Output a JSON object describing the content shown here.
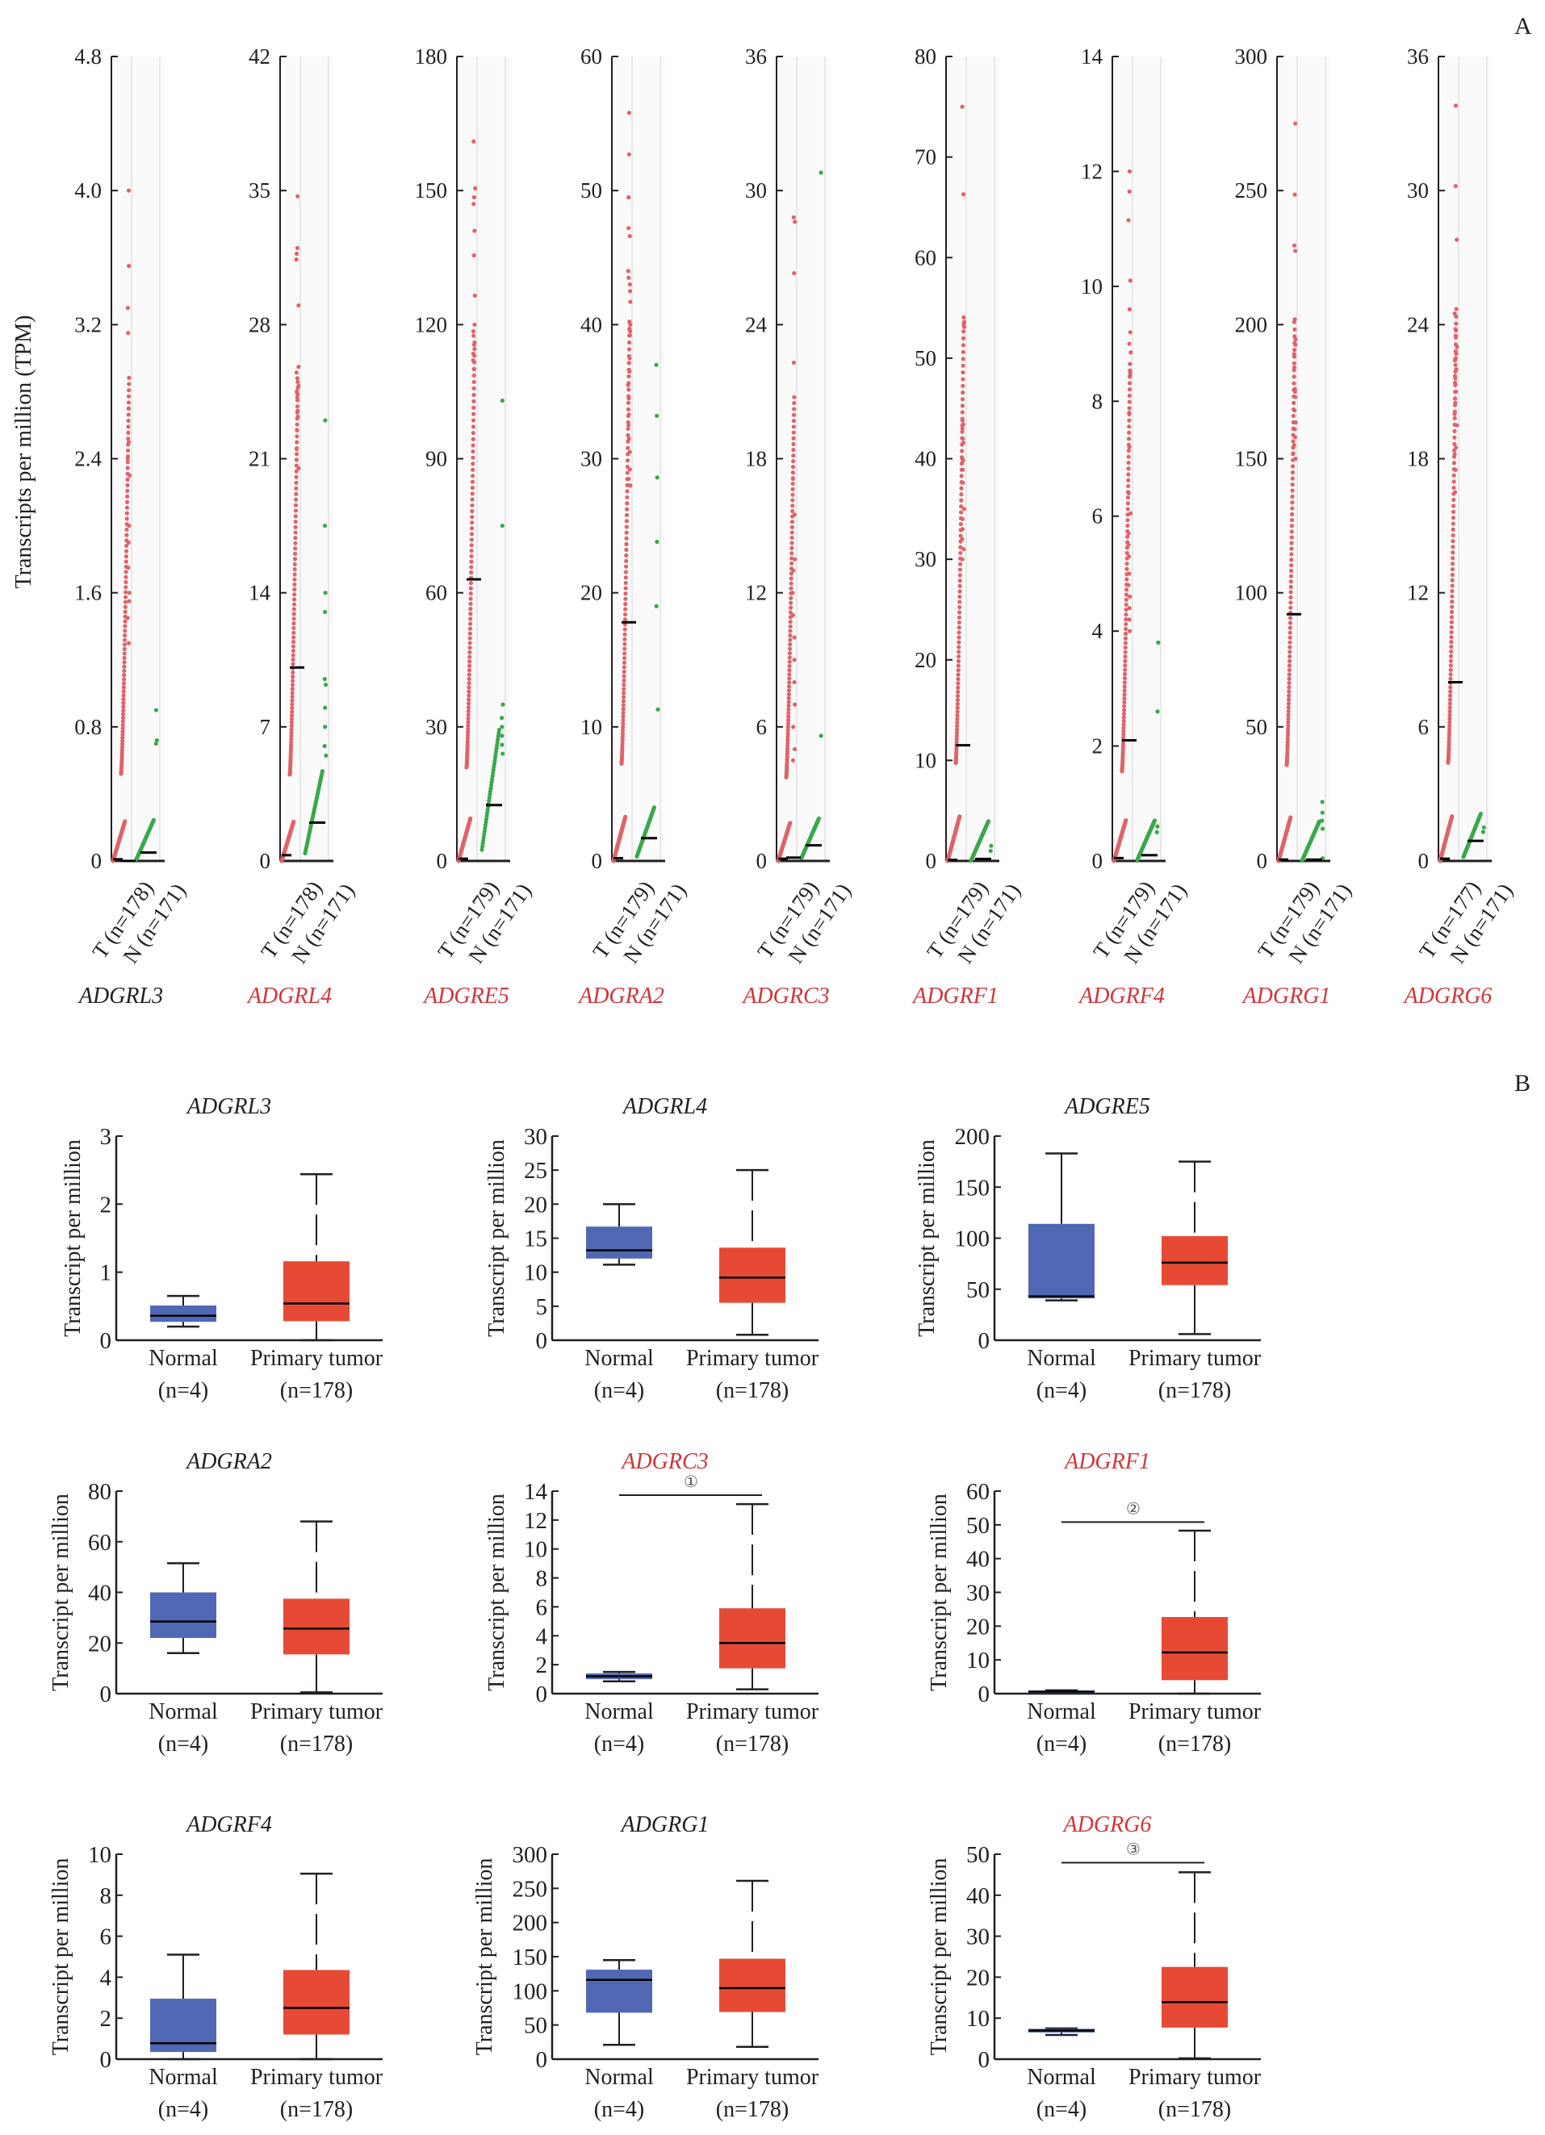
{
  "panels": {
    "a_letter": "A",
    "b_letter": "B"
  },
  "colors": {
    "tumor_dot": "#e0636a",
    "normal_dot": "#3aa84a",
    "normal_box": "#5068b4",
    "tumor_box": "#e64a35",
    "highlight_label": "#d0363b",
    "default_label": "#231f20",
    "median": "#000000",
    "axis": "#231f20"
  },
  "chart_data": [
    {
      "panel": "A",
      "type": "scatter",
      "title": "",
      "ylabel": "Transcripts per million (TPM)",
      "group_labels": [
        "T",
        "N"
      ],
      "note": "Jitter strip plots of per-sample expression (tumor red, normal green) with black median bars",
      "genes": [
        {
          "gene": "ADGRL3",
          "highlight": false,
          "ylim": [
            0,
            4.8
          ],
          "yticks": [
            0,
            0.8,
            1.6,
            2.4,
            3.2,
            4.0,
            4.8
          ],
          "tick_labels": [
            "0",
            "0.8",
            "1.6",
            "2.4",
            "3.2",
            "4.0",
            "4.8"
          ],
          "n_tumor": 178,
          "n_normal": 171,
          "tumor_label": "T (n=178)",
          "normal_label": "N (n=171)",
          "tumor_median": 0.01,
          "normal_median": 0.05,
          "tumor_max": 4.0,
          "normal_max": 0.9,
          "tumor_outliers": [
            4.0,
            3.55,
            3.3,
            3.15,
            2.7,
            2.5,
            2.4,
            2.3,
            2.0,
            1.9,
            1.75,
            1.6,
            1.55,
            1.45,
            1.3
          ],
          "normal_outliers": [
            0.9,
            0.72,
            0.7
          ]
        },
        {
          "gene": "ADGRL4",
          "highlight": true,
          "ylim": [
            0,
            42
          ],
          "yticks": [
            0,
            7,
            14,
            21,
            28,
            35,
            42
          ],
          "tick_labels": [
            "0",
            "7",
            "14",
            "21",
            "28",
            "35",
            "42"
          ],
          "n_tumor": 178,
          "n_normal": 171,
          "tumor_label": "T (n=178)",
          "normal_label": "N (n=171)",
          "tumor_median": 0.3,
          "normal_median": 2.0,
          "tumor_max": 34.7,
          "normal_max": 23.0,
          "tumor_outliers": [
            34.7,
            32.0,
            31.7,
            31.4,
            29.0,
            25.8,
            25.5,
            25.2,
            24.8,
            24.5,
            24.2,
            23.5,
            23.2,
            22.5,
            21.5,
            20.5
          ],
          "normal_outliers": [
            23.0,
            17.5,
            14.0,
            13.0,
            9.5,
            9.2,
            8.0,
            7.0,
            6.0,
            5.5
          ]
        },
        {
          "gene": "ADGRE5",
          "highlight": true,
          "ylim": [
            0,
            180
          ],
          "yticks": [
            0,
            30,
            60,
            90,
            120,
            150,
            180
          ],
          "tick_labels": [
            "0",
            "30",
            "60",
            "90",
            "120",
            "150",
            "180"
          ],
          "n_tumor": 179,
          "n_normal": 171,
          "tumor_median": 0.5,
          "normal_median": 12.5,
          "tumor_label": "T (n=179)",
          "normal_label": "N (n=171)",
          "tumor_max": 161.0,
          "normal_max": 103.0,
          "tumor_outliers": [
            161.0,
            150.5,
            148.5,
            147.0,
            141.0,
            135.5,
            126.5,
            120.0,
            118.5,
            117.5,
            115.5,
            113.5,
            112.0,
            110.0
          ],
          "normal_outliers": [
            103.0,
            75.0,
            35.0,
            32.0,
            30.0,
            28.0,
            26.0,
            24.0
          ]
        },
        {
          "gene": "ADGRA2",
          "highlight": true,
          "ylim": [
            0,
            60
          ],
          "yticks": [
            0,
            10,
            20,
            30,
            40,
            50,
            60
          ],
          "tick_labels": [
            "0",
            "10",
            "20",
            "30",
            "40",
            "50",
            "60"
          ],
          "n_tumor": 179,
          "n_normal": 171,
          "tumor_label": "T (n=179)",
          "normal_label": "N (n=171)",
          "tumor_median": 0.2,
          "normal_median": 1.7,
          "tumor_max": 55.8,
          "normal_max": 37.0,
          "tumor_outliers": [
            55.8,
            52.7,
            49.5,
            47.2,
            46.6,
            44.0,
            43.5,
            43.0,
            42.5,
            41.7,
            40.0,
            39.5,
            39.2,
            37.5,
            36.5,
            35.5,
            34.5,
            33.3,
            32.5,
            31.5,
            30.5,
            29.2,
            28.5,
            28.0
          ],
          "normal_outliers": [
            37.0,
            33.2,
            28.6,
            23.8,
            19.0,
            11.3
          ]
        },
        {
          "gene": "ADGRC3",
          "highlight": true,
          "ylim": [
            0,
            36
          ],
          "yticks": [
            0,
            6,
            12,
            18,
            24,
            30,
            36
          ],
          "tick_labels": [
            "0",
            "6",
            "12",
            "18",
            "24",
            "30",
            "36"
          ],
          "n_tumor": 179,
          "n_normal": 171,
          "tumor_label": "T (n=179)",
          "normal_label": "N (n=171)",
          "tumor_median": 0.1,
          "normal_median": 0.7,
          "tumor_max": 28.8,
          "normal_max": 30.8,
          "tumor_outliers": [
            28.8,
            28.6,
            26.3,
            22.3,
            17.1,
            15.5,
            13.5,
            13.0,
            12.0,
            11.0,
            10.0,
            9.0,
            8.0,
            7.0,
            6.0,
            5.0,
            4.5
          ],
          "normal_outliers": [
            30.8,
            5.6
          ]
        },
        {
          "gene": "ADGRF1",
          "highlight": true,
          "ylim": [
            0,
            80
          ],
          "yticks": [
            0,
            10,
            20,
            30,
            40,
            50,
            60,
            70,
            80
          ],
          "tick_labels": [
            "0",
            "10",
            "20",
            "30",
            "40",
            "50",
            "60",
            "70",
            "80"
          ],
          "n_tumor": 179,
          "n_normal": 171,
          "tumor_label": "T (n=179)",
          "normal_label": "N (n=171)",
          "tumor_median": 0.1,
          "normal_median": 0.2,
          "tumor_max": 75.0,
          "normal_max": 1.5,
          "tumor_outliers": [
            75.0,
            66.3,
            53.6,
            53.1,
            43.8,
            43.4,
            43.0,
            42.0,
            41.6,
            40.0,
            39.8,
            38.9,
            37.6,
            35.0,
            34.0,
            33.0,
            32.0,
            31.0,
            30.0
          ],
          "normal_outliers": [
            1.5,
            1.0
          ]
        },
        {
          "gene": "ADGRF4",
          "highlight": true,
          "ylim": [
            0,
            14
          ],
          "yticks": [
            0,
            2,
            4,
            6,
            8,
            10,
            12,
            14
          ],
          "tick_labels": [
            "0",
            "2",
            "4",
            "6",
            "8",
            "10",
            "12",
            "14"
          ],
          "n_tumor": 179,
          "n_normal": 171,
          "tumor_label": "T (n=179)",
          "normal_label": "N (n=171)",
          "tumor_median": 0.05,
          "normal_median": 0.1,
          "tumor_max": 12.0,
          "normal_max": 3.8,
          "tumor_outliers": [
            12.0,
            11.65,
            11.15,
            10.1,
            9.6,
            9.2,
            9.0,
            8.85,
            8.5,
            8.45,
            7.8,
            7.2,
            6.4,
            6.05,
            5.7,
            5.5,
            5.3,
            5.0,
            4.8,
            4.6,
            4.4,
            4.2,
            4.0
          ],
          "normal_outliers": [
            3.8,
            2.6,
            0.6,
            0.5
          ]
        },
        {
          "gene": "ADGRG1",
          "highlight": true,
          "ylim": [
            0,
            300
          ],
          "yticks": [
            0,
            50,
            100,
            150,
            200,
            250,
            300
          ],
          "tick_labels": [
            "0",
            "50",
            "100",
            "150",
            "200",
            "250",
            "300"
          ],
          "n_tumor": 179,
          "n_normal": 171,
          "tumor_label": "T (n=179)",
          "normal_label": "N (n=171)",
          "tumor_median": 0.5,
          "normal_median": 0.5,
          "tumor_max": 275.0,
          "normal_max": 22.0,
          "tumor_outliers": [
            275.0,
            248.5,
            229.5,
            227.5,
            202.0,
            201.0,
            194.5,
            192.5,
            189.0,
            184.0,
            176.0,
            175.0,
            173.0,
            168.0,
            163.5,
            161.0,
            158.0,
            155.0,
            152.0,
            150.0
          ],
          "normal_outliers": [
            22.0,
            18.0,
            15.0,
            12.0,
            1.0
          ]
        },
        {
          "gene": "ADGRG6",
          "highlight": true,
          "ylim": [
            0,
            36
          ],
          "yticks": [
            0,
            6,
            12,
            18,
            24,
            30,
            36
          ],
          "tick_labels": [
            "0",
            "6",
            "12",
            "18",
            "24",
            "30",
            "36"
          ],
          "n_tumor": 177,
          "n_normal": 171,
          "tumor_label": "T (n=177)",
          "normal_label": "N (n=171)",
          "tumor_median": 0.1,
          "normal_median": 0.9,
          "tumor_max": 33.8,
          "normal_max": 1.5,
          "tumor_outliers": [
            33.8,
            30.2,
            27.8,
            24.7,
            24.5,
            23.8,
            23.5,
            23.0,
            22.7,
            22.4,
            22.0,
            21.7,
            21.4,
            21.0,
            20.5,
            20.0,
            19.5,
            18.5,
            18.2,
            17.5,
            16.5
          ],
          "normal_outliers": [
            1.5,
            1.3
          ]
        }
      ],
      "inner_medians": [
        {
          "gene": "ADGRL3",
          "tumor_upper_median": 0.0,
          "normal_median": 0.05
        },
        {
          "gene": "ADGRL4",
          "tumor_upper_median": 10.1,
          "normal_median": 2.0
        },
        {
          "gene": "ADGRE5",
          "tumor_upper_median": 63.0,
          "normal_median": 12.5
        },
        {
          "gene": "ADGRA2",
          "tumor_upper_median": 17.8,
          "normal_median": 1.7
        },
        {
          "gene": "ADGRC3",
          "tumor_upper_median": 0.15,
          "normal_median": 0.7
        },
        {
          "gene": "ADGRF1",
          "tumor_upper_median": 11.5,
          "normal_median": 0.2
        },
        {
          "gene": "ADGRF4",
          "tumor_upper_median": 2.1,
          "normal_median": 0.1
        },
        {
          "gene": "ADGRG1",
          "tumor_upper_median": 92.0,
          "normal_median": 0.5
        },
        {
          "gene": "ADGRG6",
          "tumor_upper_median": 8.0,
          "normal_median": 0.9
        }
      ]
    },
    {
      "panel": "B",
      "type": "box",
      "ylabel": "Transcript per million",
      "categories": [
        "Normal",
        "Primary tumor"
      ],
      "category_counts": [
        "(n=4)",
        "(n=178)"
      ],
      "plots": [
        {
          "gene": "ADGRL3",
          "highlight": false,
          "ylim": [
            0,
            3
          ],
          "yticks": [
            0,
            1,
            2,
            3
          ],
          "tick_labels": [
            "0",
            "1",
            "2",
            "3"
          ],
          "significance": null,
          "normal": {
            "min": 0.2,
            "q1": 0.27,
            "median": 0.36,
            "q3": 0.51,
            "max": 0.65
          },
          "tumor": {
            "min": 0.0,
            "q1": 0.28,
            "median": 0.54,
            "q3": 1.16,
            "max": 2.44
          }
        },
        {
          "gene": "ADGRL4",
          "highlight": false,
          "ylim": [
            0,
            30
          ],
          "yticks": [
            0,
            5,
            10,
            15,
            20,
            25,
            30
          ],
          "tick_labels": [
            "0",
            "5",
            "10",
            "15",
            "20",
            "25",
            "30"
          ],
          "significance": null,
          "normal": {
            "min": 11.1,
            "q1": 12.0,
            "median": 13.2,
            "q3": 16.7,
            "max": 20.0
          },
          "tumor": {
            "min": 0.8,
            "q1": 5.5,
            "median": 9.2,
            "q3": 13.6,
            "max": 25.0
          }
        },
        {
          "gene": "ADGRE5",
          "highlight": false,
          "ylim": [
            0,
            200
          ],
          "yticks": [
            0,
            50,
            100,
            150,
            200
          ],
          "tick_labels": [
            "0",
            "50",
            "100",
            "150",
            "200"
          ],
          "significance": null,
          "normal": {
            "min": 39.0,
            "q1": 41.0,
            "median": 43.0,
            "q3": 114.0,
            "max": 183.0
          },
          "tumor": {
            "min": 6.0,
            "q1": 54.0,
            "median": 76.0,
            "q3": 102.0,
            "max": 175.0
          }
        },
        {
          "gene": "ADGRA2",
          "highlight": false,
          "ylim": [
            0,
            80
          ],
          "yticks": [
            0,
            20,
            40,
            60,
            80
          ],
          "tick_labels": [
            "0",
            "20",
            "40",
            "60",
            "80"
          ],
          "significance": null,
          "normal": {
            "min": 16.0,
            "q1": 22.0,
            "median": 28.5,
            "q3": 40.0,
            "max": 51.5
          },
          "tumor": {
            "min": 0.5,
            "q1": 15.5,
            "median": 25.7,
            "q3": 37.5,
            "max": 68.0
          }
        },
        {
          "gene": "ADGRC3",
          "highlight": true,
          "ylim": [
            0,
            14
          ],
          "yticks": [
            0,
            2,
            4,
            6,
            8,
            10,
            12,
            14
          ],
          "tick_labels": [
            "0",
            "2",
            "4",
            "6",
            "8",
            "10",
            "12",
            "14"
          ],
          "significance": "①",
          "normal": {
            "min": 0.85,
            "q1": 1.0,
            "median": 1.2,
            "q3": 1.4,
            "max": 1.5
          },
          "tumor": {
            "min": 0.3,
            "q1": 1.75,
            "median": 3.5,
            "q3": 5.9,
            "max": 13.1
          }
        },
        {
          "gene": "ADGRF1",
          "highlight": true,
          "ylim": [
            0,
            60
          ],
          "yticks": [
            0,
            10,
            20,
            30,
            40,
            50,
            60
          ],
          "tick_labels": [
            "0",
            "10",
            "20",
            "30",
            "40",
            "50",
            "60"
          ],
          "significance": "②",
          "normal": {
            "min": 0.3,
            "q1": 0.3,
            "median": 0.6,
            "q3": 0.9,
            "max": 1.0
          },
          "tumor": {
            "min": 0.0,
            "q1": 4.0,
            "median": 12.2,
            "q3": 22.7,
            "max": 48.3
          }
        },
        {
          "gene": "ADGRF4",
          "highlight": false,
          "ylim": [
            0,
            10
          ],
          "yticks": [
            0,
            2,
            4,
            6,
            8,
            10
          ],
          "tick_labels": [
            "0",
            "2",
            "4",
            "6",
            "8",
            "10"
          ],
          "significance": null,
          "normal": {
            "min": 0.0,
            "q1": 0.35,
            "median": 0.78,
            "q3": 2.95,
            "max": 5.1
          },
          "tumor": {
            "min": 0.0,
            "q1": 1.2,
            "median": 2.5,
            "q3": 4.35,
            "max": 9.05
          }
        },
        {
          "gene": "ADGRG1",
          "highlight": false,
          "ylim": [
            0,
            300
          ],
          "yticks": [
            0,
            50,
            100,
            150,
            200,
            250,
            300
          ],
          "tick_labels": [
            "0",
            "50",
            "100",
            "150",
            "200",
            "250",
            "300"
          ],
          "significance": null,
          "normal": {
            "min": 21.0,
            "q1": 68.0,
            "median": 116.0,
            "q3": 131.0,
            "max": 145.0
          },
          "tumor": {
            "min": 18.0,
            "q1": 69.0,
            "median": 104.0,
            "q3": 147.0,
            "max": 261.0
          }
        },
        {
          "gene": "ADGRG6",
          "highlight": true,
          "ylim": [
            0,
            50
          ],
          "yticks": [
            0,
            10,
            20,
            30,
            40,
            50
          ],
          "tick_labels": [
            "0",
            "10",
            "20",
            "30",
            "40",
            "50"
          ],
          "significance": "③",
          "normal": {
            "min": 5.9,
            "q1": 6.5,
            "median": 7.0,
            "q3": 7.4,
            "max": 7.5
          },
          "tumor": {
            "min": 0.2,
            "q1": 7.7,
            "median": 13.9,
            "q3": 22.5,
            "max": 45.6
          }
        }
      ]
    }
  ]
}
